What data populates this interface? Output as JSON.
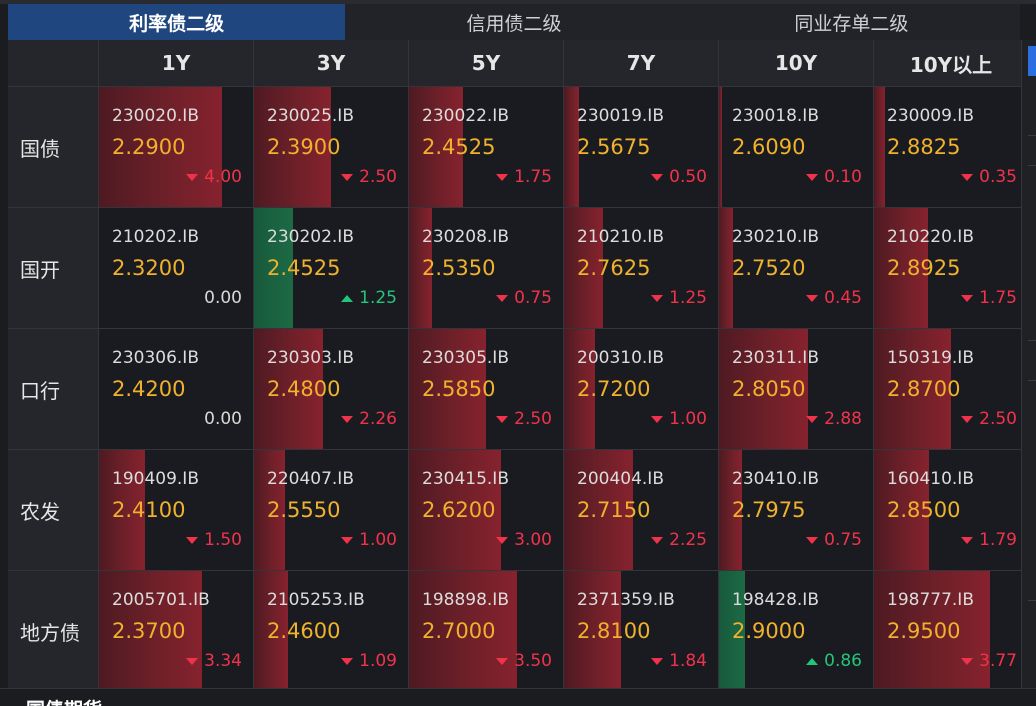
{
  "tabs": [
    "利率债二级",
    "信用债二级",
    "同业存单二级"
  ],
  "active_tab": 0,
  "tenors": [
    "1Y",
    "3Y",
    "5Y",
    "7Y",
    "10Y",
    "10Y以上"
  ],
  "rows": [
    {
      "label": "国债",
      "cells": [
        {
          "code": "230020.IB",
          "rate": "2.2900",
          "change": "4.00",
          "dir": "down",
          "level": 0.8
        },
        {
          "code": "230025.IB",
          "rate": "2.3900",
          "change": "2.50",
          "dir": "down",
          "level": 0.5
        },
        {
          "code": "230022.IB",
          "rate": "2.4525",
          "change": "1.75",
          "dir": "down",
          "level": 0.35
        },
        {
          "code": "230019.IB",
          "rate": "2.5675",
          "change": "0.50",
          "dir": "down",
          "level": 0.1
        },
        {
          "code": "230018.IB",
          "rate": "2.6090",
          "change": "0.10",
          "dir": "down",
          "level": 0.02
        },
        {
          "code": "230009.IB",
          "rate": "2.8825",
          "change": "0.35",
          "dir": "down",
          "level": 0.07
        }
      ]
    },
    {
      "label": "国开",
      "cells": [
        {
          "code": "210202.IB",
          "rate": "2.3200",
          "change": "0.00",
          "dir": "flat",
          "level": 0
        },
        {
          "code": "230202.IB",
          "rate": "2.4525",
          "change": "1.25",
          "dir": "up",
          "level": 0.25
        },
        {
          "code": "230208.IB",
          "rate": "2.5350",
          "change": "0.75",
          "dir": "down",
          "level": 0.15
        },
        {
          "code": "210210.IB",
          "rate": "2.7625",
          "change": "1.25",
          "dir": "down",
          "level": 0.25
        },
        {
          "code": "230210.IB",
          "rate": "2.7520",
          "change": "0.45",
          "dir": "down",
          "level": 0.09
        },
        {
          "code": "210220.IB",
          "rate": "2.8925",
          "change": "1.75",
          "dir": "down",
          "level": 0.35
        }
      ]
    },
    {
      "label": "口行",
      "cells": [
        {
          "code": "230306.IB",
          "rate": "2.4200",
          "change": "0.00",
          "dir": "flat",
          "level": 0
        },
        {
          "code": "230303.IB",
          "rate": "2.4800",
          "change": "2.26",
          "dir": "down",
          "level": 0.45
        },
        {
          "code": "230305.IB",
          "rate": "2.5850",
          "change": "2.50",
          "dir": "down",
          "level": 0.5
        },
        {
          "code": "200310.IB",
          "rate": "2.7200",
          "change": "1.00",
          "dir": "down",
          "level": 0.2
        },
        {
          "code": "230311.IB",
          "rate": "2.8050",
          "change": "2.88",
          "dir": "down",
          "level": 0.58
        },
        {
          "code": "150319.IB",
          "rate": "2.8700",
          "change": "2.50",
          "dir": "down",
          "level": 0.5
        }
      ]
    },
    {
      "label": "农发",
      "cells": [
        {
          "code": "190409.IB",
          "rate": "2.4100",
          "change": "1.50",
          "dir": "down",
          "level": 0.3
        },
        {
          "code": "220407.IB",
          "rate": "2.5550",
          "change": "1.00",
          "dir": "down",
          "level": 0.2
        },
        {
          "code": "230415.IB",
          "rate": "2.6200",
          "change": "3.00",
          "dir": "down",
          "level": 0.6
        },
        {
          "code": "200404.IB",
          "rate": "2.7150",
          "change": "2.25",
          "dir": "down",
          "level": 0.45
        },
        {
          "code": "230410.IB",
          "rate": "2.7975",
          "change": "0.75",
          "dir": "down",
          "level": 0.15
        },
        {
          "code": "160410.IB",
          "rate": "2.8500",
          "change": "1.79",
          "dir": "down",
          "level": 0.36
        }
      ]
    },
    {
      "label": "地方债",
      "cells": [
        {
          "code": "2005701.IB",
          "rate": "2.3700",
          "change": "3.34",
          "dir": "down",
          "level": 0.67
        },
        {
          "code": "2105253.IB",
          "rate": "2.4600",
          "change": "1.09",
          "dir": "down",
          "level": 0.22
        },
        {
          "code": "198898.IB",
          "rate": "2.7000",
          "change": "3.50",
          "dir": "down",
          "level": 0.7
        },
        {
          "code": "2371359.IB",
          "rate": "2.8100",
          "change": "1.84",
          "dir": "down",
          "level": 0.37
        },
        {
          "code": "198428.IB",
          "rate": "2.9000",
          "change": "0.86",
          "dir": "up",
          "level": 0.17
        },
        {
          "code": "198777.IB",
          "rate": "2.9500",
          "change": "3.77",
          "dir": "down",
          "level": 0.75
        }
      ]
    }
  ],
  "bottom_section": {
    "title": "国债期货"
  }
}
